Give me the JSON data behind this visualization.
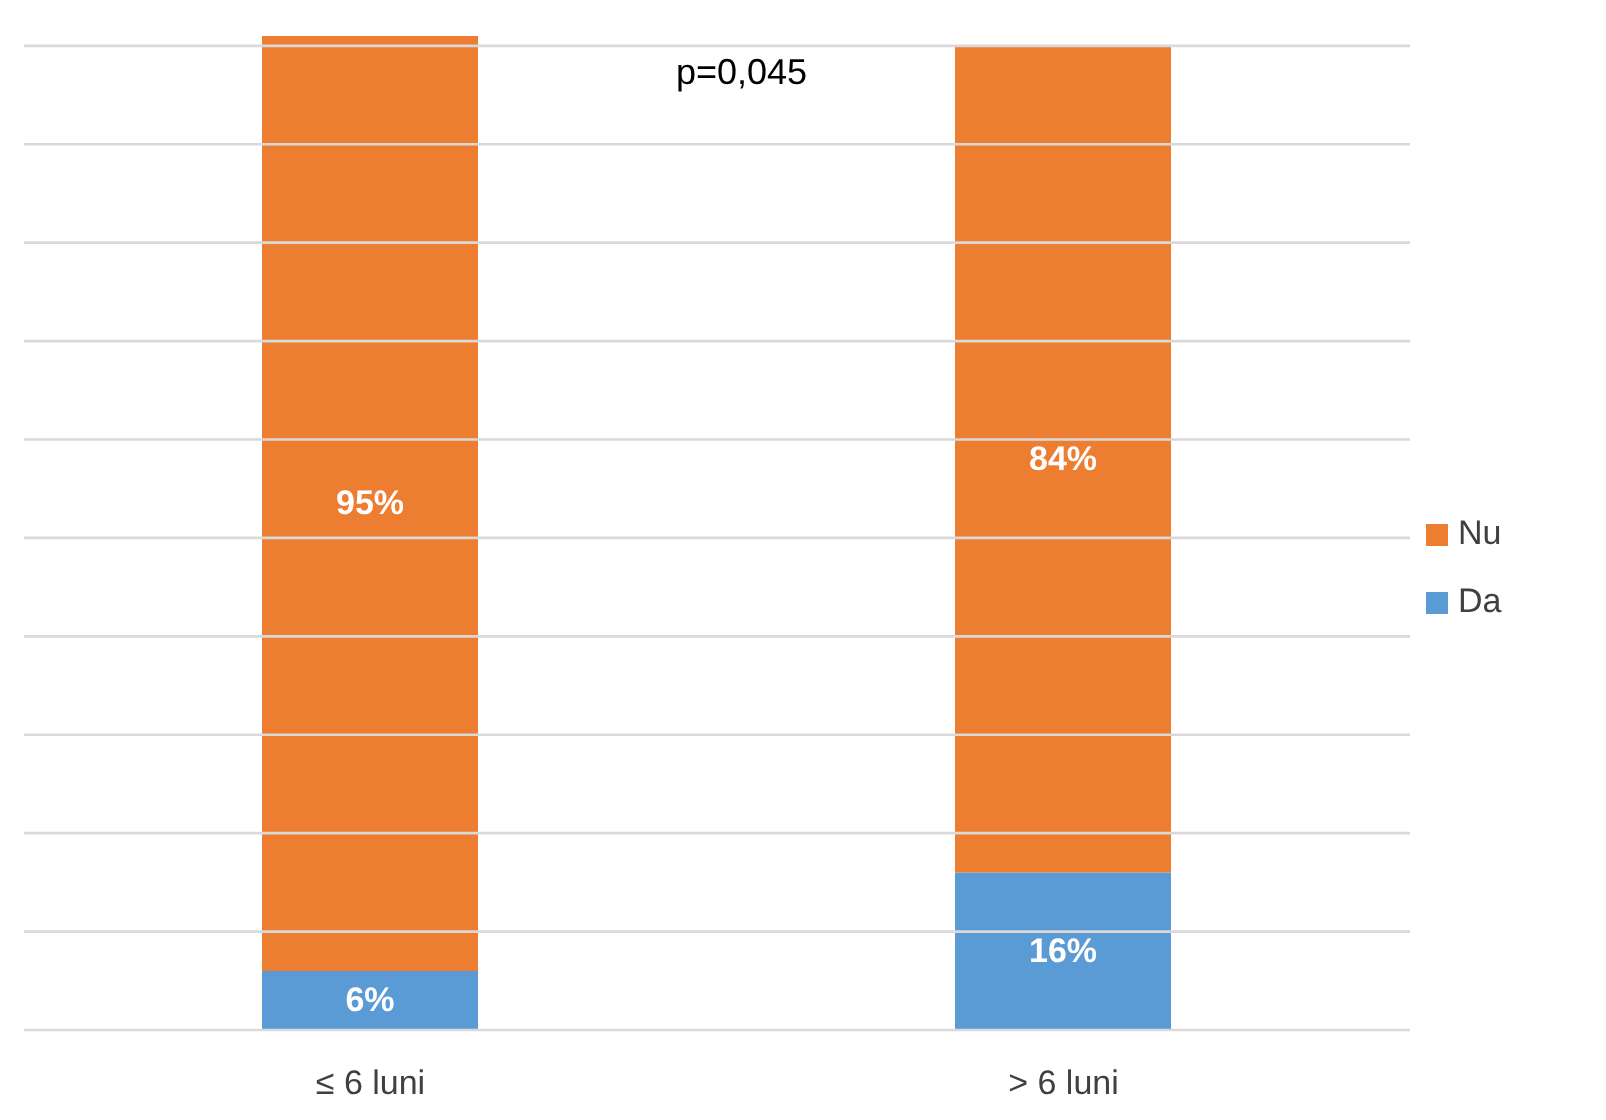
{
  "chart_data": {
    "type": "bar",
    "stacked": true,
    "categories": [
      "≤ 6 luni",
      "> 6 luni"
    ],
    "series": [
      {
        "name": "Da",
        "color": "#5b9bd5",
        "values": [
          6,
          16
        ],
        "value_labels": [
          "6%",
          "16%"
        ]
      },
      {
        "name": "Nu",
        "color": "#ed7d31",
        "values": [
          95,
          84
        ],
        "value_labels": [
          "95%",
          "84%"
        ]
      }
    ],
    "ylim": [
      0,
      101
    ],
    "yticks": [
      {
        "value": 0,
        "label": null
      },
      {
        "value": 10,
        "label": null
      },
      {
        "value": 20,
        "label": null
      },
      {
        "value": 30,
        "label": null
      },
      {
        "value": 40,
        "label": null
      },
      {
        "value": 50,
        "label": null
      },
      {
        "value": 60,
        "label": null
      },
      {
        "value": 70,
        "label": null
      },
      {
        "value": 80,
        "label": null
      },
      {
        "value": 90,
        "label": null
      },
      {
        "value": 100,
        "label": null
      }
    ],
    "grid": "y",
    "legend": "right",
    "tick_labels": "x",
    "annotations": [
      "p=0,045"
    ]
  }
}
